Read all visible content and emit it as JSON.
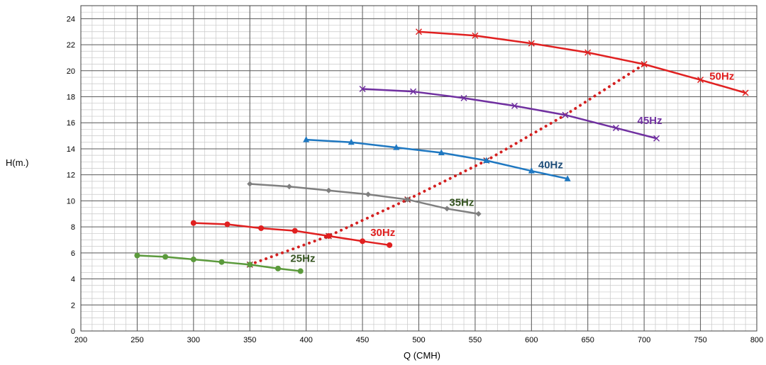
{
  "chart_data": {
    "type": "line",
    "xlabel": "Q (CMH)",
    "ylabel": "H(m.)",
    "xlim": [
      200,
      800
    ],
    "ylim": [
      0,
      25
    ],
    "x_ticks": [
      200,
      250,
      300,
      350,
      400,
      450,
      500,
      550,
      600,
      650,
      700,
      750,
      800
    ],
    "y_ticks": [
      0,
      2,
      4,
      6,
      8,
      10,
      12,
      14,
      16,
      18,
      20,
      22,
      24
    ],
    "grid": "major and minor",
    "series": [
      {
        "name": "50Hz",
        "color": "#e02020",
        "marker": "x",
        "points": [
          [
            500,
            23.0
          ],
          [
            550,
            22.7
          ],
          [
            600,
            22.1
          ],
          [
            650,
            21.4
          ],
          [
            700,
            20.5
          ],
          [
            750,
            19.3
          ],
          [
            790,
            18.3
          ]
        ]
      },
      {
        "name": "45Hz",
        "color": "#7030a0",
        "marker": "x",
        "points": [
          [
            450,
            18.6
          ],
          [
            495,
            18.4
          ],
          [
            540,
            17.9
          ],
          [
            585,
            17.3
          ],
          [
            630,
            16.6
          ],
          [
            675,
            15.6
          ],
          [
            711,
            14.8
          ]
        ]
      },
      {
        "name": "40Hz",
        "color": "#1f78c1",
        "marker": "triangle",
        "points": [
          [
            400,
            14.7
          ],
          [
            440,
            14.5
          ],
          [
            480,
            14.1
          ],
          [
            520,
            13.7
          ],
          [
            560,
            13.1
          ],
          [
            600,
            12.3
          ],
          [
            632,
            11.7
          ]
        ]
      },
      {
        "name": "35Hz",
        "color": "#7f7f7f",
        "marker": "diamond",
        "points": [
          [
            350,
            11.3
          ],
          [
            385,
            11.1
          ],
          [
            420,
            10.8
          ],
          [
            455,
            10.5
          ],
          [
            490,
            10.1
          ],
          [
            525,
            9.4
          ],
          [
            553,
            9.0
          ]
        ]
      },
      {
        "name": "30Hz",
        "color": "#e02020",
        "marker": "circle",
        "points": [
          [
            300,
            8.3
          ],
          [
            330,
            8.2
          ],
          [
            360,
            7.9
          ],
          [
            390,
            7.7
          ],
          [
            420,
            7.3
          ],
          [
            450,
            6.9
          ],
          [
            474,
            6.6
          ]
        ]
      },
      {
        "name": "25Hz",
        "color": "#5b9a3c",
        "marker": "circle",
        "points": [
          [
            250,
            5.8
          ],
          [
            275,
            5.7
          ],
          [
            300,
            5.5
          ],
          [
            325,
            5.3
          ],
          [
            350,
            5.1
          ],
          [
            375,
            4.8
          ],
          [
            395,
            4.6
          ]
        ]
      }
    ],
    "system_curve": {
      "color": "#d42020",
      "style": "dotted",
      "marker": "x",
      "points": [
        [
          350,
          5.1
        ],
        [
          420,
          7.3
        ],
        [
          490,
          10.1
        ],
        [
          560,
          13.1
        ],
        [
          630,
          16.6
        ],
        [
          700,
          20.5
        ]
      ]
    },
    "labels": [
      {
        "text": "50Hz",
        "x": 758,
        "y": 19.3,
        "color": "#e02020"
      },
      {
        "text": "45Hz",
        "x": 694,
        "y": 15.9,
        "color": "#7030a0"
      },
      {
        "text": "40Hz",
        "x": 606,
        "y": 12.5,
        "color": "#1f4e79"
      },
      {
        "text": "35Hz",
        "x": 527,
        "y": 9.6,
        "color": "#375623"
      },
      {
        "text": "30Hz",
        "x": 457,
        "y": 7.3,
        "color": "#e02020"
      },
      {
        "text": "25Hz",
        "x": 386,
        "y": 5.3,
        "color": "#375623"
      }
    ]
  }
}
